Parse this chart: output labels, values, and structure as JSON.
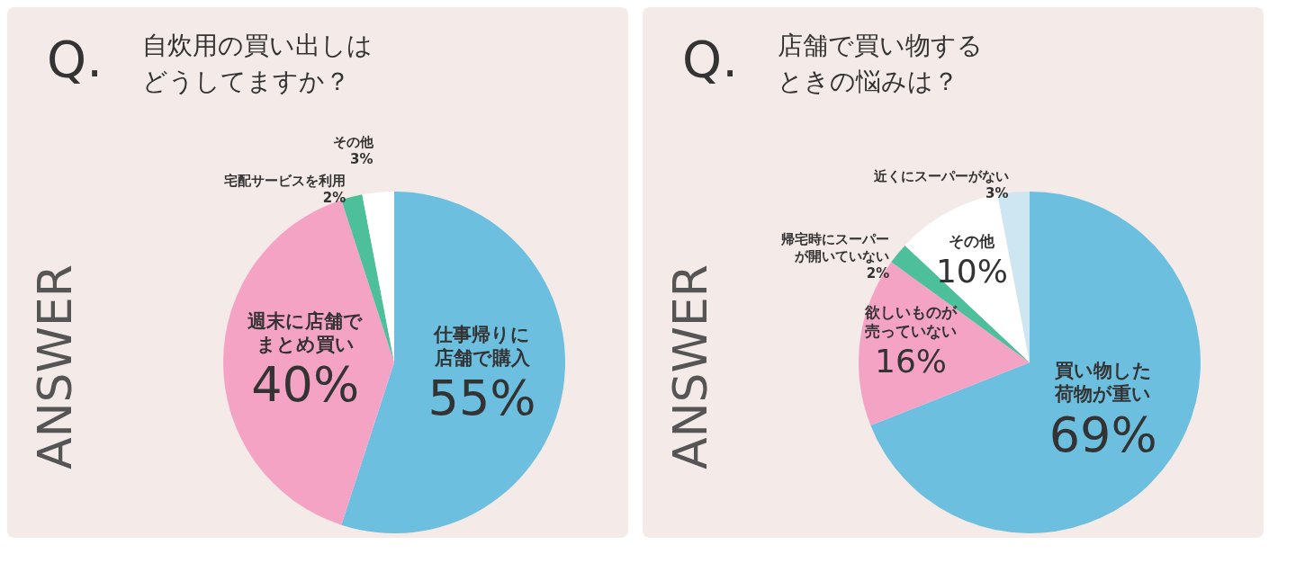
{
  "chart_data": [
    {
      "type": "pie",
      "title": "自炊用の買い出しはどうしてますか？",
      "annotations": [
        "Q.",
        "ANSWER"
      ],
      "categories": [
        "仕事帰りに店舗で購入",
        "週末に店舗でまとめ買い",
        "宅配サービスを利用",
        "その他"
      ],
      "values": [
        55,
        40,
        2,
        3
      ],
      "colors": [
        "#6dbfe0",
        "#f5a3c5",
        "#4dbf9a",
        "#ffffff"
      ],
      "value_labels": [
        "55%",
        "40%",
        "2%",
        "3%"
      ]
    },
    {
      "type": "pie",
      "title": "店舗で買い物するときの悩みは？",
      "annotations": [
        "Q.",
        "ANSWER"
      ],
      "categories": [
        "買い物した荷物が重い",
        "欲しいものが売っていない",
        "帰宅時にスーパーが開いていない",
        "その他",
        "近くにスーパーがない"
      ],
      "values": [
        69,
        16,
        2,
        10,
        3
      ],
      "colors": [
        "#6dbfe0",
        "#f5a3c5",
        "#4dbf9a",
        "#ffffff",
        "#cde6f2"
      ],
      "value_labels": [
        "69%",
        "16%",
        "2%",
        "10%",
        "3%"
      ]
    }
  ]
}
